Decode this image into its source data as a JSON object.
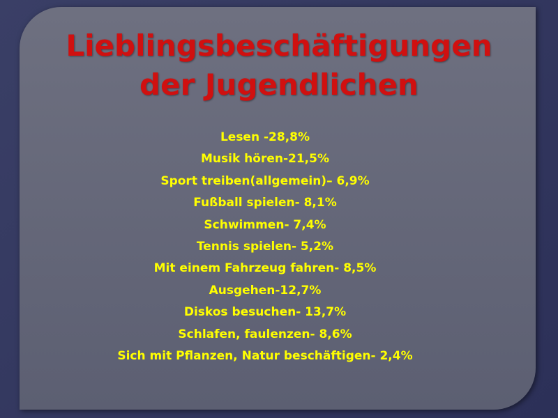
{
  "header": {
    "title_lines": [
      "Lieblingsbeschäftigungen",
      "der Jugendlichen"
    ]
  },
  "items": [
    "Lesen -28,8%",
    "Musik hören-21,5%",
    "Sport treiben(allgemein)– 6,9%",
    "Fußball spielen- 8,1%",
    "Schwimmen- 7,4%",
    "Tennis spielen- 5,2%",
    "Mit einem Fahrzeug fahren- 8,5%",
    "Ausgehen-12,7%",
    "Diskos besuchen- 13,7%",
    "Schlafen, faulenzen- 8,6%",
    "Sich mit Pflanzen, Natur beschäftigen- 2,4%"
  ]
}
